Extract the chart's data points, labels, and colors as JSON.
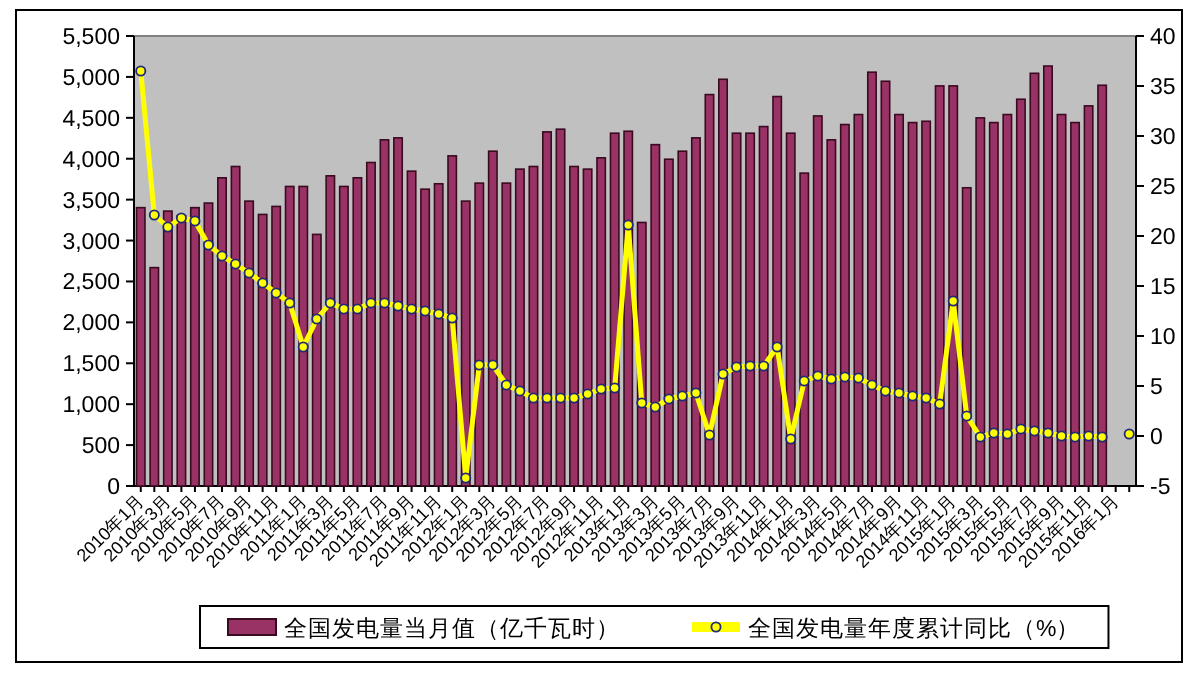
{
  "chart_data": {
    "type": "bar",
    "categories": [
      "2010年1月",
      null,
      "2010年3月",
      null,
      "2010年5月",
      null,
      "2010年7月",
      null,
      "2010年9月",
      null,
      "2010年11月",
      null,
      "2011年1月",
      null,
      "2011年3月",
      null,
      "2011年5月",
      null,
      "2011年7月",
      null,
      "2011年9月",
      null,
      "2011年11月",
      null,
      "2012年1月",
      null,
      "2012年3月",
      null,
      "2012年5月",
      null,
      "2012年7月",
      null,
      "2012年9月",
      null,
      "2012年11月",
      null,
      "2013年1月",
      null,
      "2013年3月",
      null,
      "2013年5月",
      null,
      "2013年7月",
      null,
      "2013年9月",
      null,
      "2013年11月",
      null,
      "2014年1月",
      null,
      "2014年3月",
      null,
      "2014年5月",
      null,
      "2014年7月",
      null,
      "2014年9月",
      null,
      "2014年11月",
      null,
      "2015年1月",
      null,
      "2015年3月",
      null,
      "2015年5月",
      null,
      "2015年7月",
      null,
      "2015年9月",
      null,
      "2015年11月",
      null,
      "2016年1月",
      null
    ],
    "series": [
      {
        "name": "全国发电量当月值（亿千瓦时）",
        "color": "#993366",
        "values": [
          3402,
          2669,
          3360,
          3303,
          3402,
          3458,
          3767,
          3905,
          3482,
          3319,
          3417,
          3661,
          3661,
          3075,
          3791,
          3661,
          3767,
          3954,
          4231,
          4255,
          3848,
          3628,
          3694,
          4035,
          3482,
          3702,
          4092,
          3702,
          3873,
          3905,
          4328,
          4361,
          3905,
          3873,
          4011,
          4312,
          4336,
          3221,
          4172,
          3994,
          4092,
          4255,
          4784,
          4971,
          4312,
          4312,
          4393,
          4760,
          4312,
          3824,
          4523,
          4231,
          4418,
          4540,
          5058,
          4947,
          4540,
          4442,
          4458,
          4890,
          4890,
          3645,
          4499,
          4442,
          4540,
          4727,
          5044,
          5133,
          4540,
          4442,
          4646,
          4898,
          null,
          null
        ]
      },
      {
        "name": "全国发电量年度累计同比（%）",
        "type": "line",
        "axis": "y2",
        "color": "#ffff00",
        "marker": "circle",
        "values": [
          36.5,
          22.1,
          20.9,
          21.8,
          21.5,
          19.1,
          18.0,
          17.2,
          16.3,
          15.3,
          14.3,
          13.3,
          8.9,
          11.7,
          13.3,
          12.7,
          12.7,
          13.3,
          13.3,
          13.0,
          12.7,
          12.5,
          12.2,
          11.8,
          -4.2,
          7.1,
          7.1,
          5.1,
          4.5,
          3.8,
          3.8,
          3.8,
          3.8,
          4.2,
          4.7,
          4.8,
          21.1,
          3.3,
          2.9,
          3.7,
          4.0,
          4.3,
          0.1,
          6.2,
          6.9,
          7.0,
          7.0,
          8.9,
          -0.3,
          5.5,
          6.0,
          5.7,
          5.9,
          5.8,
          5.1,
          4.5,
          4.3,
          4.0,
          3.8,
          3.2,
          13.5,
          2.0,
          -0.1,
          0.3,
          0.2,
          0.7,
          0.5,
          0.3,
          0,
          -0.1,
          0,
          -0.1,
          null,
          0.2
        ]
      }
    ],
    "ylim": [
      0,
      5500
    ],
    "yticks": [
      0,
      {
        "value": 500,
        "label": "500"
      },
      {
        "value": 1000,
        "label": "1,000"
      },
      {
        "value": 1500,
        "label": "1,500"
      },
      {
        "value": 2000,
        "label": "2,000"
      },
      {
        "value": 2500,
        "label": "2,500"
      },
      {
        "value": 3000,
        "label": "3,000"
      },
      {
        "value": 3500,
        "label": "3,500"
      },
      {
        "value": 4000,
        "label": "4,000"
      },
      {
        "value": 4500,
        "label": "4,500"
      },
      {
        "value": 5000,
        "label": "5,000"
      },
      {
        "value": 5500,
        "label": "5,500"
      }
    ],
    "y2lim": [
      -5,
      40
    ],
    "y2ticks": [
      -5,
      0,
      5,
      10,
      15,
      20,
      25,
      30,
      35,
      40
    ],
    "legend": "bottom"
  }
}
